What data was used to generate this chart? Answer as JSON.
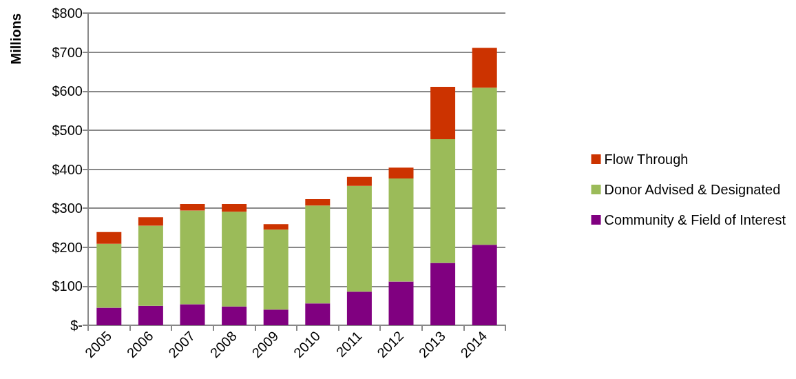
{
  "chart_data": {
    "type": "bar",
    "stacked": true,
    "ylabel": "Millions",
    "categories": [
      "2005",
      "2006",
      "2007",
      "2008",
      "2009",
      "2010",
      "2011",
      "2012",
      "2013",
      "2014"
    ],
    "series": [
      {
        "name": "Community & Field of Interest",
        "color": "#800080",
        "values": [
          45,
          50,
          54,
          48,
          40,
          56,
          86,
          112,
          160,
          206
        ]
      },
      {
        "name": "Donor Advised & Designated",
        "color": "#9bbb59",
        "values": [
          164,
          205,
          240,
          243,
          205,
          251,
          271,
          264,
          317,
          403
        ]
      },
      {
        "name": "Flow Through",
        "color": "#cc3300",
        "values": [
          30,
          22,
          17,
          20,
          14,
          16,
          23,
          28,
          134,
          102
        ]
      }
    ],
    "ylim": [
      0,
      800
    ],
    "yticks": [
      {
        "value": 0,
        "label": "$-"
      },
      {
        "value": 100,
        "label": "$100"
      },
      {
        "value": 200,
        "label": "$200"
      },
      {
        "value": 300,
        "label": "$300"
      },
      {
        "value": 400,
        "label": "$400"
      },
      {
        "value": 500,
        "label": "$500"
      },
      {
        "value": 600,
        "label": "$600"
      },
      {
        "value": 700,
        "label": "$700"
      },
      {
        "value": 800,
        "label": "$800"
      }
    ],
    "grid": "y",
    "legend": "right"
  }
}
